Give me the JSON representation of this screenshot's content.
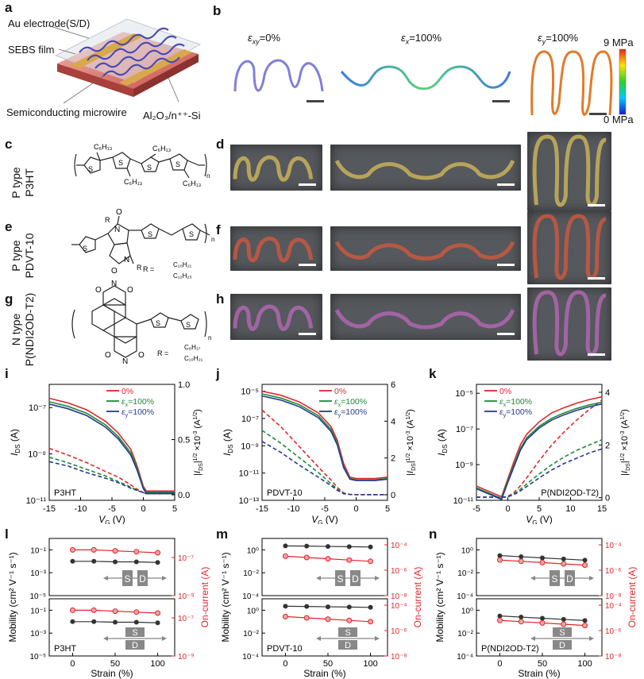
{
  "panel_labels": {
    "a": "a",
    "b": "b",
    "c": "c",
    "d": "d",
    "e": "e",
    "f": "f",
    "g": "g",
    "h": "h",
    "i": "i",
    "j": "j",
    "k": "k",
    "l": "l",
    "m": "m",
    "n": "n"
  },
  "panel_a": {
    "labels": [
      "Au electrode(S/D)",
      "SEBS film",
      "Semiconducting microwire",
      "Al₂O₃/n⁺⁺-Si"
    ]
  },
  "panel_b": {
    "strain_labels": [
      {
        "sym": "ε",
        "sub": "xy",
        "rest": "=0%"
      },
      {
        "sym": "ε",
        "sub": "x",
        "rest": "=100%"
      },
      {
        "sym": "ε",
        "sub": "y",
        "rest": "=100%"
      }
    ],
    "colorbar": {
      "max": "9 MPa",
      "min": "0 MPa"
    },
    "colors": {
      "low": "#2b2bd9",
      "high": "#e8231b"
    }
  },
  "materials": [
    {
      "type": "P type",
      "name": "P3HT"
    },
    {
      "type": "P type",
      "name": "PDVT-10"
    },
    {
      "type": "N type",
      "name": "P(NDI2OD-T2)"
    }
  ],
  "molecule_text": {
    "c6h13": "C₆H₁₃",
    "n": "n",
    "R": "R",
    "O": "O",
    "N": "N",
    "S": "S",
    "r_pdvt": "R =",
    "c10h21": "C₁₀H₂₁",
    "c12h25": "C₁₂H₂₅",
    "r_ndi": "R =",
    "c8h17": "C₈H₁₇"
  },
  "chart_data": [
    {
      "panel": "i",
      "type": "line",
      "material": "P3HT",
      "xlabel": "V_G (V)",
      "ylabel_left": "I_DS (A)",
      "ylabel_right": "|I_DS|^1/2 ×10⁻³ (A^1/2)",
      "xlim": [
        -15,
        5
      ],
      "xticks": [
        "-15",
        "-10",
        "-5",
        "0",
        "5"
      ],
      "ylim_left_log": [
        -11,
        -6
      ],
      "yticks_left": [
        "10⁻¹¹",
        "10⁻⁹",
        "10⁻⁷"
      ],
      "ylim_right": [
        -0.05,
        1.0
      ],
      "yticks_right": [
        "0.0",
        "0.5",
        "1.0"
      ],
      "legend": [
        "0%",
        "εx=100%",
        "εy=100%"
      ],
      "series": [
        {
          "name": "0%",
          "color": "#e0262a",
          "x": [
            -15,
            -12,
            -9,
            -6,
            -4,
            -2,
            -1,
            0,
            0.5,
            1,
            3,
            5
          ],
          "log_y": [
            -6.6,
            -6.8,
            -7.1,
            -7.6,
            -8.1,
            -8.8,
            -9.5,
            -10.4,
            -10.6,
            -10.6,
            -10.6,
            -10.6
          ],
          "sqrt_y": [
            0.42,
            0.36,
            0.29,
            0.21,
            0.16,
            0.09,
            0.05,
            0.02,
            0.01,
            0.01,
            0.01,
            0.01
          ]
        },
        {
          "name": "εx=100%",
          "color": "#1f8a3a",
          "x": [
            -15,
            -12,
            -9,
            -6,
            -4,
            -2,
            -1,
            0,
            0.5,
            1,
            3,
            5
          ],
          "log_y": [
            -6.75,
            -6.95,
            -7.25,
            -7.75,
            -8.25,
            -8.95,
            -9.6,
            -10.45,
            -10.65,
            -10.65,
            -10.65,
            -10.65
          ],
          "sqrt_y": [
            0.34,
            0.29,
            0.23,
            0.17,
            0.12,
            0.07,
            0.04,
            0.02,
            0.01,
            0.01,
            0.01,
            0.01
          ]
        },
        {
          "name": "εy=100%",
          "color": "#243c8f",
          "x": [
            -15,
            -12,
            -9,
            -6,
            -4,
            -2,
            -1,
            0,
            0.5,
            1,
            3,
            5
          ],
          "log_y": [
            -6.85,
            -7.05,
            -7.35,
            -7.85,
            -8.35,
            -9.05,
            -9.7,
            -10.5,
            -10.7,
            -10.7,
            -10.7,
            -10.7
          ],
          "sqrt_y": [
            0.3,
            0.26,
            0.2,
            0.15,
            0.11,
            0.06,
            0.04,
            0.02,
            0.01,
            0.01,
            0.01,
            0.01
          ]
        }
      ]
    },
    {
      "panel": "j",
      "type": "line",
      "material": "PDVT-10",
      "xlabel": "V_G (V)",
      "ylabel_left": "I_DS (A)",
      "ylabel_right": "|I_DS|^1/2 ×10⁻³ (A^1/2)",
      "xlim": [
        -15,
        5
      ],
      "xticks": [
        "-15",
        "-10",
        "-5",
        "0",
        "5"
      ],
      "ylim_left_log": [
        -13,
        -4.5
      ],
      "yticks_left": [
        "10⁻¹³",
        "10⁻¹¹",
        "10⁻⁹",
        "10⁻⁷",
        "10⁻⁵"
      ],
      "ylim_right": [
        -0.3,
        6
      ],
      "yticks_right": [
        "0",
        "2",
        "4",
        "6"
      ],
      "legend": [
        "0%",
        "εx=100%",
        "εy=100%"
      ],
      "series": [
        {
          "name": "0%",
          "color": "#e0262a",
          "x": [
            -15,
            -12,
            -9,
            -6,
            -4,
            -3,
            -2,
            -1,
            0,
            1,
            3,
            5
          ],
          "log_y": [
            -5.0,
            -5.3,
            -5.8,
            -6.6,
            -7.6,
            -8.6,
            -10.3,
            -11.3,
            -11.4,
            -11.4,
            -11.4,
            -11.3
          ],
          "sqrt_y": [
            4.6,
            3.7,
            2.6,
            1.5,
            0.8,
            0.4,
            0.1,
            0.02,
            0.01,
            0.01,
            0.01,
            0.01
          ]
        },
        {
          "name": "εx=100%",
          "color": "#1f8a3a",
          "x": [
            -15,
            -12,
            -9,
            -6,
            -4,
            -3,
            -2,
            -1,
            0,
            1,
            3,
            5
          ],
          "log_y": [
            -5.2,
            -5.5,
            -6.0,
            -6.8,
            -7.8,
            -8.8,
            -10.5,
            -11.4,
            -11.5,
            -11.5,
            -11.5,
            -11.4
          ],
          "sqrt_y": [
            3.5,
            2.8,
            2.0,
            1.2,
            0.6,
            0.3,
            0.08,
            0.02,
            0.01,
            0.01,
            0.01,
            0.01
          ]
        },
        {
          "name": "εy=100%",
          "color": "#243c8f",
          "x": [
            -15,
            -12,
            -9,
            -6,
            -4,
            -3,
            -2,
            -1,
            0,
            1,
            3,
            5
          ],
          "log_y": [
            -5.35,
            -5.65,
            -6.15,
            -6.95,
            -7.95,
            -8.95,
            -10.6,
            -11.45,
            -11.55,
            -11.55,
            -11.55,
            -11.45
          ],
          "sqrt_y": [
            2.9,
            2.3,
            1.6,
            0.95,
            0.5,
            0.25,
            0.06,
            0.02,
            0.01,
            0.01,
            0.01,
            0.01
          ]
        }
      ]
    },
    {
      "panel": "k",
      "type": "line",
      "material": "P(NDI2OD-T2)",
      "xlabel": "V_G (V)",
      "ylabel_left": "I_DS (A)",
      "ylabel_right": "|I_DS|^1/2 ×10⁻³ (A^1/2)",
      "xlim": [
        -5,
        15
      ],
      "xticks": [
        "-5",
        "0",
        "5",
        "10",
        "15"
      ],
      "ylim_left_log": [
        -11,
        -4.5
      ],
      "yticks_left": [
        "10⁻¹¹",
        "10⁻⁹",
        "10⁻⁷",
        "10⁻⁵"
      ],
      "ylim_right": [
        -0.1,
        4.3
      ],
      "yticks_right": [
        "0",
        "2",
        "4"
      ],
      "legend": [
        "0%",
        "εx=100%",
        "εy=100%"
      ],
      "series": [
        {
          "name": "0%",
          "color": "#e0262a",
          "x": [
            -5,
            -3,
            -1,
            0,
            1,
            2,
            3,
            5,
            7,
            9,
            11,
            13,
            15
          ],
          "log_y": [
            -10.2,
            -10.5,
            -10.8,
            -9.8,
            -8.8,
            -7.9,
            -7.3,
            -6.6,
            -6.1,
            -5.8,
            -5.55,
            -5.35,
            -5.2
          ],
          "sqrt_y": [
            0.02,
            0.02,
            0.01,
            0.05,
            0.2,
            0.45,
            0.75,
            1.4,
            2.0,
            2.5,
            2.95,
            3.35,
            3.7
          ]
        },
        {
          "name": "εx=100%",
          "color": "#1f8a3a",
          "x": [
            -5,
            -3,
            -1,
            0,
            1,
            2,
            3,
            5,
            7,
            9,
            11,
            13,
            15
          ],
          "log_y": [
            -10.3,
            -10.6,
            -10.9,
            -9.9,
            -9.0,
            -8.1,
            -7.5,
            -6.85,
            -6.4,
            -6.1,
            -5.85,
            -5.65,
            -5.5
          ],
          "sqrt_y": [
            0.02,
            0.02,
            0.01,
            0.04,
            0.15,
            0.32,
            0.52,
            0.9,
            1.25,
            1.55,
            1.8,
            2.0,
            2.2
          ]
        },
        {
          "name": "εy=100%",
          "color": "#243c8f",
          "x": [
            -5,
            -3,
            -1,
            0,
            1,
            2,
            3,
            5,
            7,
            9,
            11,
            13,
            15
          ],
          "log_y": [
            -10.35,
            -10.65,
            -10.95,
            -10.0,
            -9.1,
            -8.2,
            -7.6,
            -6.95,
            -6.5,
            -6.2,
            -5.95,
            -5.75,
            -5.6
          ],
          "sqrt_y": [
            0.02,
            0.02,
            0.01,
            0.03,
            0.12,
            0.26,
            0.42,
            0.75,
            1.05,
            1.3,
            1.5,
            1.7,
            1.85
          ]
        }
      ]
    },
    {
      "panel": "l",
      "type": "line",
      "material": "P3HT",
      "xlabel": "Strain (%)",
      "ylabel_left": "Mobility (cm² V⁻¹ s⁻¹)",
      "ylabel_right": "On-current (A)",
      "x": [
        0,
        25,
        50,
        75,
        100
      ],
      "xticks": [
        "0",
        "50",
        "100"
      ],
      "yticks_left": [
        "10⁻⁵",
        "10⁻³",
        "10⁻¹"
      ],
      "yticks_right": [
        "10⁻⁹",
        "10⁻⁷"
      ],
      "subplots": [
        {
          "orientation": "parallel",
          "mobility_log": [
            -2.0,
            -2.0,
            -2.05,
            -2.05,
            -2.1
          ],
          "oncurrent_log": [
            -6.6,
            -6.6,
            -6.65,
            -6.7,
            -6.75
          ]
        },
        {
          "orientation": "perpendicular",
          "mobility_log": [
            -2.0,
            -2.0,
            -2.05,
            -2.05,
            -2.1
          ],
          "oncurrent_log": [
            -6.6,
            -6.6,
            -6.65,
            -6.7,
            -6.75
          ]
        }
      ]
    },
    {
      "panel": "m",
      "type": "line",
      "material": "PDVT-10",
      "xlabel": "Strain (%)",
      "ylabel_left": "Mobility (cm² V⁻¹ s⁻¹)",
      "ylabel_right": "On-current (A)",
      "x": [
        0,
        25,
        50,
        75,
        100
      ],
      "xticks": [
        "0",
        "50",
        "100"
      ],
      "yticks_left": [
        "10⁻⁴",
        "10⁻²",
        "10⁰"
      ],
      "yticks_right": [
        "10⁻⁸",
        "10⁻⁶",
        "10⁻⁴"
      ],
      "subplots": [
        {
          "orientation": "parallel",
          "mobility_log": [
            0.35,
            0.33,
            0.3,
            0.28,
            0.25
          ],
          "oncurrent_log": [
            -4.9,
            -5.0,
            -5.1,
            -5.2,
            -5.3
          ]
        },
        {
          "orientation": "perpendicular",
          "mobility_log": [
            0.35,
            0.33,
            0.3,
            0.28,
            0.25
          ],
          "oncurrent_log": [
            -4.9,
            -5.0,
            -5.1,
            -5.2,
            -5.3
          ]
        }
      ]
    },
    {
      "panel": "n",
      "type": "line",
      "material": "P(NDI2OD-T2)",
      "xlabel": "Strain (%)",
      "ylabel_left": "Mobility (cm² V⁻¹ s⁻¹)",
      "ylabel_right": "On-current (A)",
      "x": [
        0,
        25,
        50,
        75,
        100
      ],
      "xticks": [
        "0",
        "50",
        "100"
      ],
      "yticks_left": [
        "10⁻⁴",
        "10⁻²",
        "10⁰"
      ],
      "yticks_right": [
        "10⁻⁸",
        "10⁻⁶",
        "10⁻⁴"
      ],
      "subplots": [
        {
          "orientation": "parallel",
          "mobility_log": [
            -0.5,
            -0.6,
            -0.7,
            -0.8,
            -0.9
          ],
          "oncurrent_log": [
            -5.2,
            -5.3,
            -5.4,
            -5.5,
            -5.6
          ]
        },
        {
          "orientation": "perpendicular",
          "mobility_log": [
            -0.5,
            -0.6,
            -0.7,
            -0.8,
            -0.9
          ],
          "oncurrent_log": [
            -5.2,
            -5.3,
            -5.4,
            -5.5,
            -5.6
          ]
        }
      ]
    }
  ],
  "device_labels": {
    "S": "S",
    "D": "D"
  },
  "colors": {
    "red": "#e0262a",
    "green": "#1f8a3a",
    "navy": "#243c8f",
    "black": "#333333"
  }
}
